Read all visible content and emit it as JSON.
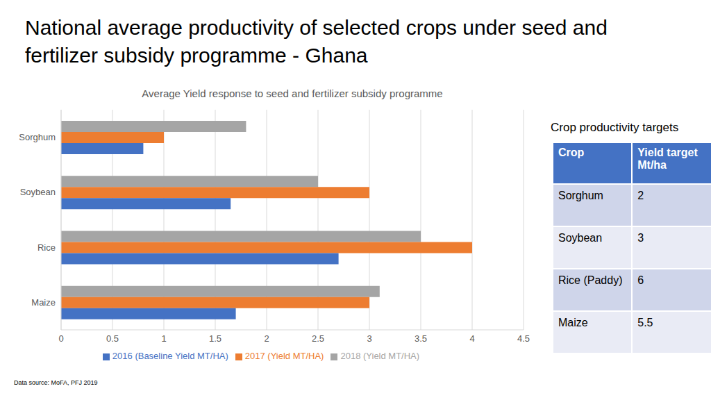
{
  "title": "National average productivity of selected crops under seed and fertilizer subsidy programme - Ghana",
  "chart_data": {
    "type": "bar",
    "title": "Average Yield response to seed and fertilizer subsidy programme",
    "orientation": "horizontal",
    "categories": [
      "Sorghum",
      "Soybean",
      "Rice",
      "Maize"
    ],
    "series": [
      {
        "name": "2018 (Yield MT/HA)",
        "color": "#a5a5a5",
        "values": [
          1.8,
          2.5,
          3.5,
          3.1
        ]
      },
      {
        "name": "2017 (Yield MT/HA)",
        "color": "#ed7d31",
        "values": [
          1.0,
          3.0,
          4.0,
          3.0
        ]
      },
      {
        "name": "2016 (Baseline Yield MT/HA)",
        "color": "#4472c4",
        "values": [
          0.8,
          1.65,
          2.7,
          1.7
        ]
      }
    ],
    "xlim": [
      0,
      4.5
    ],
    "xticks": [
      0,
      0.5,
      1,
      1.5,
      2,
      2.5,
      3,
      3.5,
      4,
      4.5
    ],
    "grid": true,
    "legend": "bottom"
  },
  "table": {
    "title": "Crop productivity targets",
    "header": [
      "Crop",
      "Yield target Mt/ha"
    ],
    "rows": [
      [
        "Sorghum",
        2
      ],
      [
        "Soybean",
        3
      ],
      [
        "Rice (Paddy)",
        6
      ],
      [
        "Maize",
        5.5
      ]
    ]
  },
  "source": "Data source: MoFA, PFJ 2019"
}
